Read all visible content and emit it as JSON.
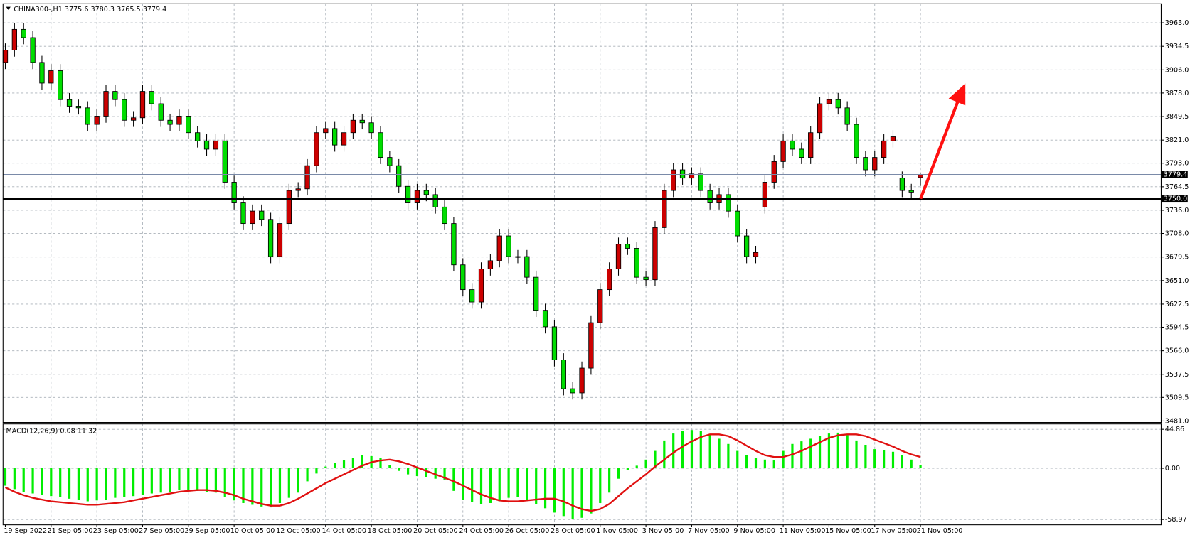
{
  "chart_data": [
    {
      "type": "candlestick",
      "title": "CHINA300-,H1  3775.6 3780.3 3765.5 3779.4",
      "up_color": "#cc0000",
      "down_color": "#00dd00",
      "grid": true,
      "open": [
        3915,
        3930,
        3955,
        3945,
        3915,
        3890,
        3905,
        3870,
        3862,
        3860,
        3840,
        3850,
        3880,
        3870,
        3845,
        3848,
        3880,
        3865,
        3845,
        3840,
        3850,
        3830,
        3820,
        3810,
        3820,
        3770,
        3745,
        3720,
        3735,
        3725,
        3680,
        3720,
        3760,
        3762,
        3790,
        3830,
        3835,
        3815,
        3830,
        3845,
        3842,
        3830,
        3800,
        3790,
        3765,
        3745,
        3760,
        3755,
        3740,
        3720,
        3670,
        3640,
        3625,
        3665,
        3675,
        3705,
        3680,
        3680,
        3655,
        3615,
        3595,
        3555,
        3520,
        3515,
        3545,
        3600,
        3640,
        3665,
        3695,
        3690,
        3655,
        3652,
        3715,
        3760,
        3785,
        3775,
        3780,
        3760,
        3745,
        3755,
        3735,
        3705,
        3680,
        3740,
        3770,
        3795,
        3820,
        3810,
        3800,
        3830,
        3865,
        3870,
        3860,
        3840,
        3800,
        3785,
        3800,
        3820,
        3775,
        3760,
        3775.6
      ],
      "high": [
        3938,
        3963,
        3963,
        3953,
        3923,
        3913,
        3913,
        3878,
        3870,
        3868,
        3858,
        3888,
        3888,
        3878,
        3856,
        3888,
        3888,
        3873,
        3853,
        3858,
        3858,
        3838,
        3828,
        3828,
        3828,
        3778,
        3753,
        3743,
        3743,
        3733,
        3728,
        3768,
        3770,
        3798,
        3838,
        3843,
        3843,
        3838,
        3853,
        3853,
        3850,
        3838,
        3808,
        3798,
        3773,
        3768,
        3768,
        3763,
        3748,
        3728,
        3678,
        3648,
        3673,
        3683,
        3713,
        3713,
        3688,
        3688,
        3663,
        3623,
        3603,
        3563,
        3528,
        3553,
        3608,
        3648,
        3673,
        3703,
        3703,
        3698,
        3663,
        3723,
        3768,
        3793,
        3793,
        3788,
        3788,
        3768,
        3763,
        3763,
        3743,
        3713,
        3693,
        3778,
        3803,
        3828,
        3828,
        3818,
        3838,
        3873,
        3878,
        3878,
        3868,
        3848,
        3808,
        3808,
        3828,
        3833,
        3783,
        3768,
        3780.3
      ],
      "low": [
        3907,
        3922,
        3937,
        3907,
        3882,
        3882,
        3862,
        3854,
        3852,
        3832,
        3832,
        3842,
        3862,
        3837,
        3837,
        3840,
        3857,
        3837,
        3832,
        3832,
        3822,
        3812,
        3802,
        3802,
        3762,
        3737,
        3712,
        3712,
        3717,
        3672,
        3672,
        3712,
        3752,
        3754,
        3782,
        3822,
        3807,
        3807,
        3822,
        3834,
        3822,
        3792,
        3782,
        3757,
        3737,
        3737,
        3747,
        3732,
        3712,
        3662,
        3632,
        3617,
        3617,
        3657,
        3667,
        3672,
        3672,
        3647,
        3607,
        3587,
        3547,
        3512,
        3507,
        3507,
        3537,
        3592,
        3632,
        3657,
        3682,
        3647,
        3644,
        3644,
        3707,
        3752,
        3767,
        3767,
        3752,
        3737,
        3737,
        3727,
        3697,
        3672,
        3672,
        3732,
        3762,
        3787,
        3802,
        3792,
        3792,
        3822,
        3857,
        3852,
        3832,
        3792,
        3777,
        3777,
        3792,
        3812,
        3752,
        3750,
        3765.5
      ],
      "close": [
        3930,
        3955,
        3945,
        3915,
        3890,
        3905,
        3870,
        3862,
        3860,
        3840,
        3850,
        3880,
        3870,
        3845,
        3848,
        3880,
        3865,
        3845,
        3840,
        3850,
        3830,
        3820,
        3810,
        3820,
        3770,
        3745,
        3720,
        3735,
        3725,
        3680,
        3720,
        3760,
        3762,
        3790,
        3830,
        3835,
        3815,
        3830,
        3845,
        3842,
        3830,
        3800,
        3790,
        3765,
        3745,
        3760,
        3755,
        3740,
        3720,
        3670,
        3640,
        3625,
        3665,
        3675,
        3705,
        3680,
        3680,
        3655,
        3615,
        3595,
        3555,
        3520,
        3515,
        3545,
        3600,
        3640,
        3665,
        3695,
        3690,
        3655,
        3652,
        3715,
        3760,
        3785,
        3775,
        3780,
        3760,
        3745,
        3755,
        3735,
        3705,
        3680,
        3685,
        3770,
        3795,
        3820,
        3810,
        3800,
        3830,
        3865,
        3870,
        3860,
        3840,
        3800,
        3785,
        3800,
        3820,
        3825,
        3760,
        3758,
        3779.4
      ],
      "xlim": [
        -0.25,
        126.3
      ],
      "xticks": [
        {
          "value": 0,
          "label": "19 Sep 2022"
        },
        {
          "value": 5,
          "label": "21 Sep 05:00"
        },
        {
          "value": 10,
          "label": "23 Sep 05:00"
        },
        {
          "value": 15,
          "label": "27 Sep 05:00"
        },
        {
          "value": 20,
          "label": "29 Sep 05:00"
        },
        {
          "value": 25,
          "label": "10 Oct 05:00"
        },
        {
          "value": 30,
          "label": "12 Oct 05:00"
        },
        {
          "value": 35,
          "label": "14 Oct 05:00"
        },
        {
          "value": 40,
          "label": "18 Oct 05:00"
        },
        {
          "value": 45,
          "label": "20 Oct 05:00"
        },
        {
          "value": 50,
          "label": "24 Oct 05:00"
        },
        {
          "value": 55,
          "label": "26 Oct 05:00"
        },
        {
          "value": 60,
          "label": "28 Oct 05:00"
        },
        {
          "value": 65,
          "label": "1 Nov 05:00"
        },
        {
          "value": 70,
          "label": "3 Nov 05:00"
        },
        {
          "value": 75,
          "label": "7 Nov 05:00"
        },
        {
          "value": 80,
          "label": "9 Nov 05:00"
        },
        {
          "value": 85,
          "label": "11 Nov 05:00"
        },
        {
          "value": 90,
          "label": "15 Nov 05:00"
        },
        {
          "value": 95,
          "label": "17 Nov 05:00"
        },
        {
          "value": 100,
          "label": "21 Nov 05:00"
        }
      ],
      "ylim": [
        3479.2,
        3986
      ],
      "yticks": [
        {
          "value": 3963,
          "label": "3963.0"
        },
        {
          "value": 3934.5,
          "label": "3934.5"
        },
        {
          "value": 3906,
          "label": "3906.0"
        },
        {
          "value": 3878,
          "label": "3878.0"
        },
        {
          "value": 3849.5,
          "label": "3849.5"
        },
        {
          "value": 3821,
          "label": "3821.0"
        },
        {
          "value": 3793,
          "label": "3793.0"
        },
        {
          "value": 3764.5,
          "label": "3764.5"
        },
        {
          "value": 3736,
          "label": "3736.0"
        },
        {
          "value": 3708,
          "label": "3708.0"
        },
        {
          "value": 3679.5,
          "label": "3679.5"
        },
        {
          "value": 3651,
          "label": "3651.0"
        },
        {
          "value": 3622.5,
          "label": "3622.5"
        },
        {
          "value": 3594.5,
          "label": "3594.5"
        },
        {
          "value": 3566,
          "label": "3566.0"
        },
        {
          "value": 3537.5,
          "label": "3537.5"
        },
        {
          "value": 3509.5,
          "label": "3509.5"
        },
        {
          "value": 3481,
          "label": "3481.0"
        }
      ],
      "price_line": {
        "value": 3779.4,
        "label": "3779.4",
        "color": "#7a8aa8"
      },
      "level_line": {
        "value": 3750,
        "label": "3750.0",
        "color": "#000000"
      }
    },
    {
      "type": "macd",
      "title": "MACD(12,26,9) 0.08 11.32",
      "histogram_color": "#00ee00",
      "signal_color": "#e01010",
      "histogram": [
        -20,
        -24,
        -27,
        -29,
        -31,
        -32,
        -33,
        -35,
        -36,
        -38,
        -37,
        -36,
        -34,
        -33,
        -32,
        -31,
        -29,
        -28,
        -27,
        -25,
        -25,
        -26,
        -27,
        -28,
        -33,
        -37,
        -40,
        -42,
        -44,
        -45,
        -40,
        -34,
        -28,
        -15,
        -6,
        2,
        6,
        9,
        12,
        15,
        14,
        12,
        4,
        -3,
        -7,
        -9,
        -10,
        -12,
        -13,
        -26,
        -36,
        -39,
        -41,
        -40,
        -38,
        -34,
        -33,
        -36,
        -41,
        -46,
        -51,
        -55,
        -58,
        -57,
        -52,
        -40,
        -28,
        -12,
        -2,
        3,
        10,
        20,
        32,
        40,
        43,
        44,
        43,
        39,
        34,
        28,
        20,
        15,
        12,
        10,
        9,
        20,
        28,
        31,
        34,
        37,
        40,
        41,
        38,
        32,
        27,
        22,
        21,
        19,
        15,
        10,
        4
      ],
      "signal": [
        -22,
        -27,
        -31,
        -34,
        -36,
        -38,
        -39,
        -40,
        -41,
        -42,
        -42,
        -41,
        -40,
        -39,
        -37,
        -35,
        -33,
        -31,
        -29,
        -27,
        -26,
        -25,
        -25,
        -26,
        -28,
        -31,
        -35,
        -38,
        -41,
        -43,
        -43,
        -40,
        -35,
        -29,
        -23,
        -17,
        -12,
        -7,
        -2,
        3,
        7,
        9,
        10,
        8,
        5,
        1,
        -3,
        -7,
        -11,
        -15,
        -20,
        -25,
        -30,
        -34,
        -37,
        -38,
        -38,
        -37,
        -36,
        -35,
        -35,
        -38,
        -43,
        -47,
        -49,
        -47,
        -41,
        -32,
        -23,
        -15,
        -7,
        2,
        10,
        18,
        25,
        31,
        36,
        39,
        39,
        37,
        32,
        26,
        20,
        15,
        13,
        13,
        16,
        20,
        25,
        30,
        35,
        38,
        39,
        39,
        37,
        33,
        29,
        25,
        20,
        16,
        13
      ],
      "xlim": [
        -0.25,
        126.3
      ],
      "ylim": [
        -65.08,
        50.97
      ],
      "yticks": [
        44.86,
        {
          "value": 0,
          "label": "0.00"
        },
        -58.97
      ],
      "grid": true
    }
  ]
}
